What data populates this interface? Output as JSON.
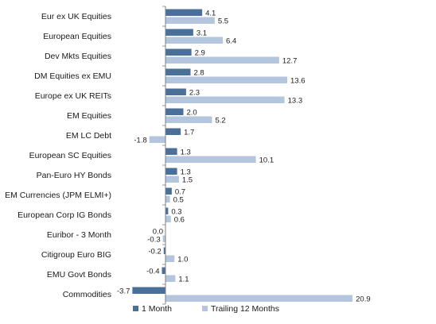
{
  "chart_data": {
    "type": "bar",
    "orientation": "horizontal",
    "categories": [
      "Eur ex UK Equities",
      "European Equities",
      "Dev Mkts Equities",
      "DM Equities ex EMU",
      "Europe ex UK REITs",
      "EM Equities",
      "EM LC Debt",
      "European SC Equities",
      "Pan-Euro HY Bonds",
      "EM Currencies (JPM ELMI+)",
      "European Corp IG Bonds",
      "Euribor - 3 Month",
      "Citigroup Euro BIG",
      "EMU Govt Bonds",
      "Commodities"
    ],
    "series": [
      {
        "name": "1 Month",
        "color": "#4a6f99",
        "values": [
          4.1,
          3.1,
          2.9,
          2.8,
          2.3,
          2.0,
          1.7,
          1.3,
          1.3,
          0.7,
          0.3,
          0.0,
          -0.2,
          -0.4,
          -3.7
        ],
        "labels": [
          "4.1",
          "3.1",
          "2.9",
          "2.8",
          "2.3",
          "2.0",
          "1.7",
          "1.3",
          "1.3",
          "0.7",
          "0.3",
          "0.0",
          "-0.2",
          "-0.4",
          "-3.7"
        ]
      },
      {
        "name": "Trailing 12 Months",
        "color": "#b3c6dd",
        "values": [
          5.5,
          6.4,
          12.7,
          13.6,
          13.3,
          5.2,
          -1.8,
          10.1,
          1.5,
          0.5,
          0.6,
          -0.3,
          1.0,
          1.1,
          20.9
        ],
        "labels": [
          "5.5",
          "6.4",
          "12.7",
          "13.6",
          "13.3",
          "5.2",
          "-1.8",
          "10.1",
          "1.5",
          "0.5",
          "0.6",
          "-0.3",
          "1.0",
          "1.1",
          "20.9"
        ]
      }
    ],
    "xlim": [
      -4.5,
      22
    ],
    "grid": false,
    "legend_position": "bottom",
    "title": "",
    "xlabel": "",
    "ylabel": ""
  }
}
